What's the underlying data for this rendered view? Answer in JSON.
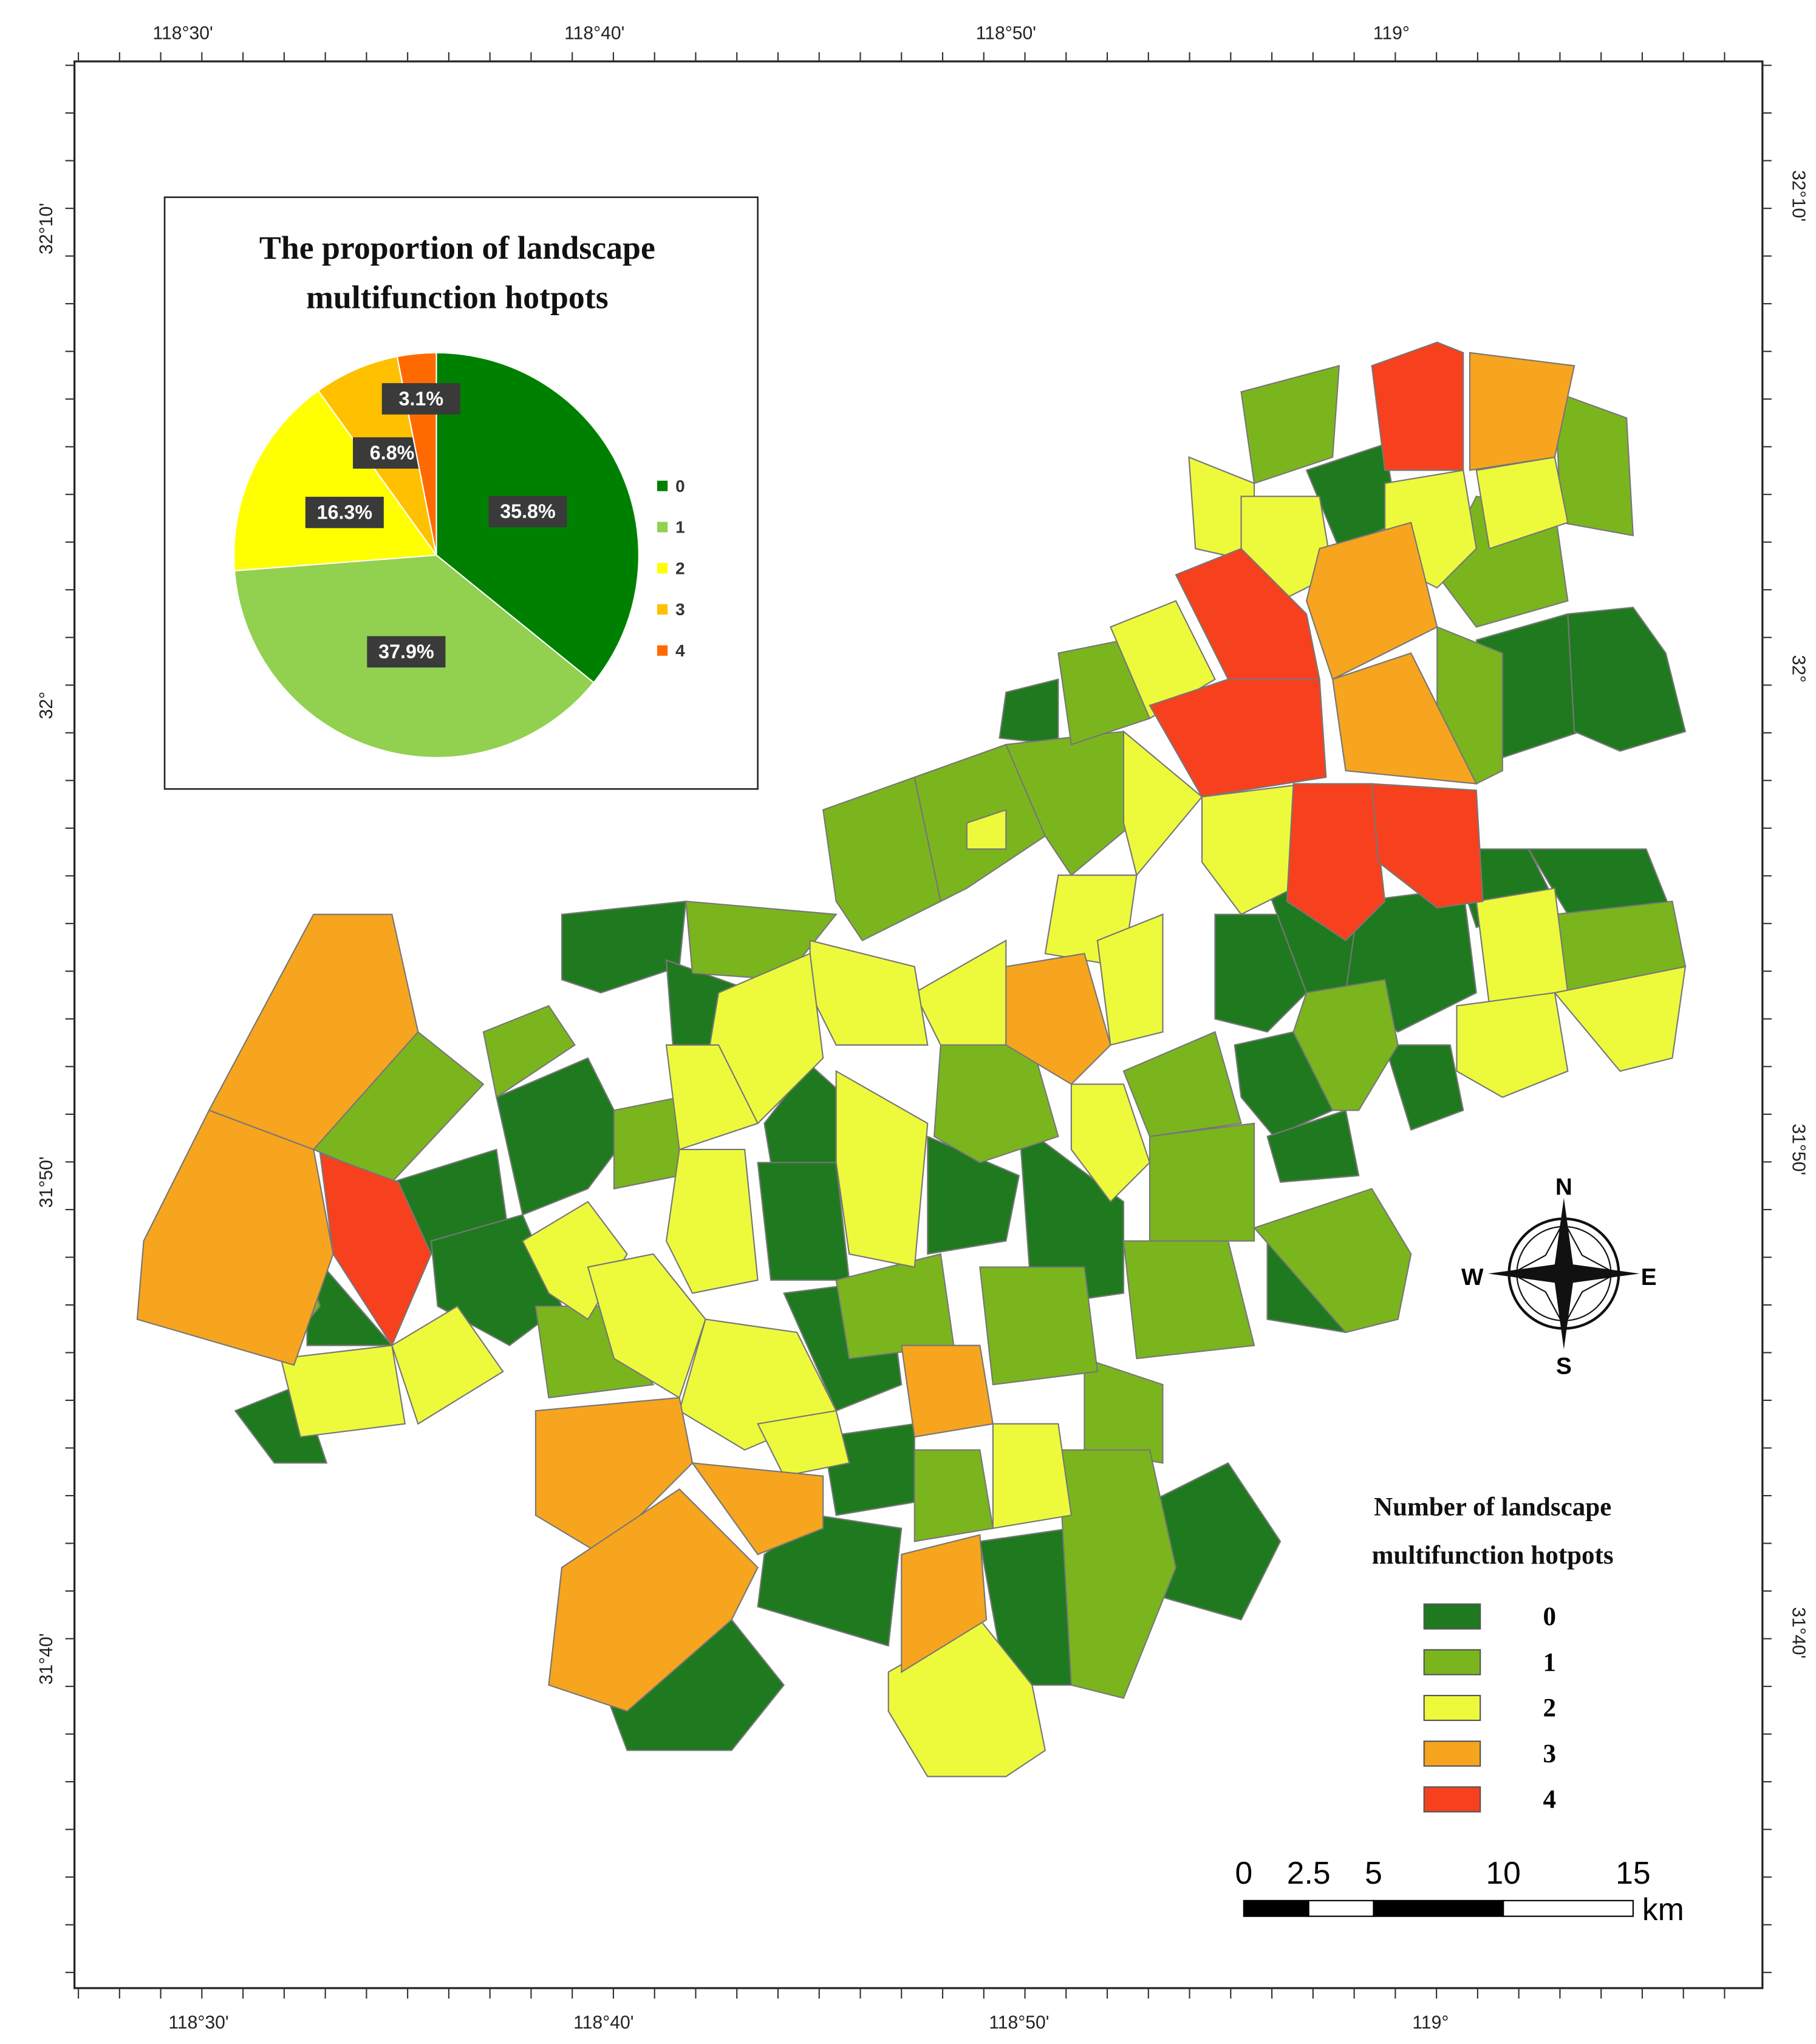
{
  "map": {
    "top_labels": [
      "118°30'",
      "118°40'",
      "118°50'",
      "119°"
    ],
    "bottom_labels": [
      "118°30'",
      "118°40'",
      "118°50'",
      "119°"
    ],
    "left_labels": [
      "32°10'",
      "32°",
      "31°50'",
      "31°40'"
    ],
    "right_labels": [
      "32°10'",
      "32°",
      "31°50'",
      "31°40'"
    ],
    "compass": {
      "north": "N",
      "south": "S",
      "west": "W",
      "east": "E"
    },
    "legend": {
      "title": "Number of landscape multifunction hotpots",
      "items": [
        "0",
        "1",
        "2",
        "3",
        "4"
      ],
      "colors": [
        "#1f7a1f",
        "#7bb51e",
        "#edfa3c",
        "#f7a51e",
        "#f7401e"
      ]
    },
    "scale_bar": {
      "ticks": [
        0,
        2.5,
        5,
        10,
        15
      ],
      "unit": "km"
    }
  },
  "chart_data": {
    "type": "pie",
    "title": "The proportion of landscape multifunction hotpots",
    "categories": [
      "0",
      "1",
      "2",
      "3",
      "4"
    ],
    "values": [
      35.8,
      37.9,
      16.3,
      6.8,
      3.1
    ],
    "value_labels": [
      "35.8%",
      "37.9%",
      "16.3%",
      "6.8%",
      "3.1%"
    ],
    "colors": [
      "#008000",
      "#92d050",
      "#ffff00",
      "#ffc000",
      "#ff6a00"
    ]
  }
}
